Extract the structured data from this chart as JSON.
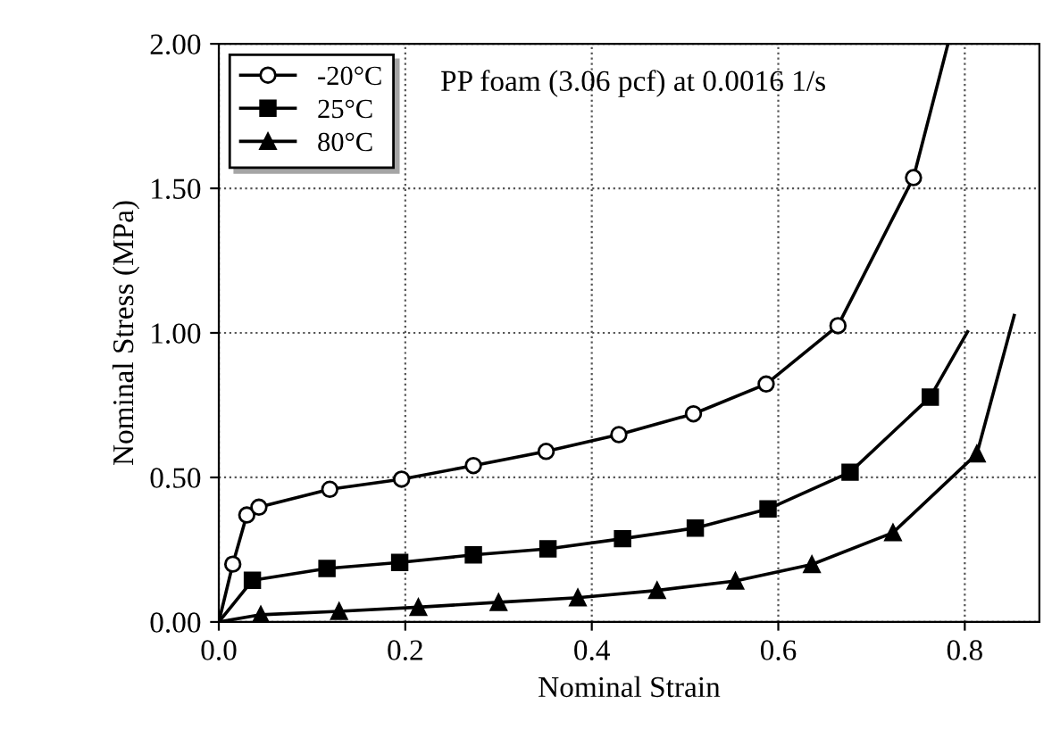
{
  "chart_data": {
    "type": "line",
    "xlabel": "Nominal Strain",
    "ylabel": "Nominal Stress (MPa)",
    "annotations": [
      "PP foam (3.06 pcf) at 0.0016 1/s"
    ],
    "xlim": [
      0,
      0.88
    ],
    "ylim": [
      0,
      2.0
    ],
    "xticks": [
      {
        "value": 0,
        "label": "0.0"
      },
      0.2,
      0.4,
      0.6,
      0.8
    ],
    "yticks": [
      {
        "value": 0,
        "label": "0.00"
      },
      {
        "value": 0.5,
        "label": "0.50"
      },
      {
        "value": 1.0,
        "label": "1.00"
      },
      {
        "value": 1.5,
        "label": "1.50"
      },
      {
        "value": 2.0,
        "label": "2.00"
      }
    ],
    "grid": true,
    "legend": "top left",
    "line_style": "solid",
    "series": [
      {
        "name": "-20°C",
        "color": "#000000",
        "marker": "circle",
        "x": [
          0,
          0.015,
          0.03,
          0.043,
          0.119,
          0.196,
          0.273,
          0.351,
          0.429,
          0.509,
          0.587,
          0.664,
          0.745,
          0.782
        ],
        "values": [
          0,
          0.2,
          0.37,
          0.397,
          0.459,
          0.494,
          0.541,
          0.59,
          0.648,
          0.72,
          0.823,
          1.025,
          1.537,
          2.0
        ]
      },
      {
        "name": "25°C",
        "color": "#000000",
        "marker": "square",
        "x": [
          0,
          0.036,
          0.116,
          0.194,
          0.273,
          0.353,
          0.433,
          0.511,
          0.589,
          0.677,
          0.763,
          0.803
        ],
        "values": [
          0,
          0.144,
          0.185,
          0.206,
          0.232,
          0.253,
          0.288,
          0.325,
          0.391,
          0.518,
          0.778,
          1.004
        ]
      },
      {
        "name": "80°C",
        "color": "#000000",
        "marker": "triangle",
        "x": [
          0,
          0.045,
          0.129,
          0.214,
          0.3,
          0.385,
          0.47,
          0.554,
          0.636,
          0.723,
          0.813,
          0.853
        ],
        "values": [
          0,
          0.025,
          0.037,
          0.051,
          0.068,
          0.084,
          0.109,
          0.142,
          0.199,
          0.309,
          0.582,
          1.06
        ]
      }
    ]
  }
}
